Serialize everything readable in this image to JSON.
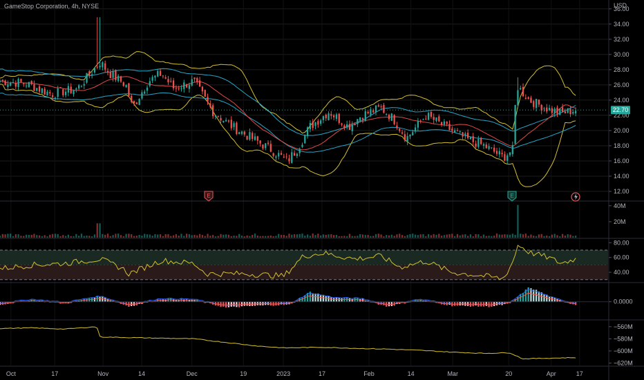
{
  "header": {
    "title": "GameStop Corporation, 4h, NYSE",
    "currency": "USD"
  },
  "colors": {
    "background": "#000000",
    "up": "#26a69a",
    "down": "#ef5350",
    "bollinger": "#d4c030",
    "envelope": "#26a6c8",
    "ma": "#e04848",
    "rsi": "#d4c030",
    "rsi_band": "#1a2a22",
    "rsi_band_low": "#2a1a1a",
    "price_tag": "#26a69a",
    "grid": "#1c1c1c"
  },
  "events": {
    "earnings_1": "E",
    "earnings_2": "E",
    "split_icon": "lightning-icon"
  },
  "chart_data": [
    {
      "type": "candlestick",
      "name": "price",
      "y_ticks": [
        "36.00",
        "34.00",
        "32.00",
        "30.00",
        "28.00",
        "26.00",
        "24.00",
        "22.00",
        "20.00",
        "18.00",
        "16.00",
        "14.00",
        "12.00"
      ],
      "y_tick_values": [
        36,
        34,
        32,
        30,
        28,
        26,
        24,
        22,
        20,
        18,
        16,
        14,
        12
      ],
      "ylim": [
        11,
        36.8
      ],
      "last_price": "22.70",
      "last_value": 22.7,
      "x_ticks": [
        "Oct",
        "17",
        "Nov",
        "14",
        "Dec",
        "19",
        "2023",
        "17",
        "Feb",
        "14",
        "Mar",
        "20",
        "Apr",
        "17"
      ],
      "x_tick_pos": [
        0.017,
        0.085,
        0.16,
        0.22,
        0.298,
        0.378,
        0.44,
        0.5,
        0.573,
        0.638,
        0.703,
        0.79,
        0.856,
        0.9
      ],
      "key_points": [
        {
          "t": 0.0,
          "c": 26.5
        },
        {
          "t": 0.04,
          "c": 26.2
        },
        {
          "t": 0.08,
          "c": 24.8
        },
        {
          "t": 0.12,
          "c": 25.5
        },
        {
          "t": 0.155,
          "c": 29.0
        },
        {
          "t": 0.17,
          "c": 27.5
        },
        {
          "t": 0.195,
          "c": 26.0
        },
        {
          "t": 0.205,
          "c": 23.0
        },
        {
          "t": 0.23,
          "c": 26.5
        },
        {
          "t": 0.25,
          "c": 27.5
        },
        {
          "t": 0.27,
          "c": 25.5
        },
        {
          "t": 0.3,
          "c": 26.5
        },
        {
          "t": 0.33,
          "c": 22.5
        },
        {
          "t": 0.36,
          "c": 20.5
        },
        {
          "t": 0.39,
          "c": 19.0
        },
        {
          "t": 0.42,
          "c": 17.5
        },
        {
          "t": 0.445,
          "c": 16.0
        },
        {
          "t": 0.46,
          "c": 17.5
        },
        {
          "t": 0.48,
          "c": 20.5
        },
        {
          "t": 0.51,
          "c": 22.5
        },
        {
          "t": 0.54,
          "c": 20.5
        },
        {
          "t": 0.56,
          "c": 22.0
        },
        {
          "t": 0.59,
          "c": 23.0
        },
        {
          "t": 0.61,
          "c": 21.5
        },
        {
          "t": 0.63,
          "c": 19.0
        },
        {
          "t": 0.66,
          "c": 22.0
        },
        {
          "t": 0.69,
          "c": 20.5
        },
        {
          "t": 0.72,
          "c": 19.0
        },
        {
          "t": 0.75,
          "c": 18.0
        },
        {
          "t": 0.78,
          "c": 16.5
        },
        {
          "t": 0.795,
          "c": 17.5
        },
        {
          "t": 0.8,
          "c": 26.0
        },
        {
          "t": 0.82,
          "c": 24.0
        },
        {
          "t": 0.85,
          "c": 22.8
        },
        {
          "t": 0.87,
          "c": 22.3
        },
        {
          "t": 0.89,
          "c": 22.7
        }
      ],
      "spikes": [
        {
          "t": 0.153,
          "high": 34.9
        },
        {
          "t": 0.802,
          "high": 27.0
        }
      ]
    },
    {
      "type": "bar",
      "name": "volume",
      "y_ticks": [
        "40M",
        "20M"
      ],
      "y_tick_values": [
        40,
        20
      ],
      "ylim": [
        0,
        45
      ],
      "typical": 4,
      "spikes": [
        {
          "t": 0.153,
          "value": 18
        },
        {
          "t": 0.802,
          "value": 41
        }
      ]
    },
    {
      "type": "line",
      "name": "rsi",
      "y_ticks": [
        "80.00",
        "60.00",
        "40.00"
      ],
      "y_tick_values": [
        80,
        60,
        40
      ],
      "ylim": [
        27,
        85
      ],
      "upper": 70,
      "mid": 50,
      "lower": 30,
      "key_points": [
        {
          "t": 0.0,
          "v": 45
        },
        {
          "t": 0.05,
          "v": 50
        },
        {
          "t": 0.1,
          "v": 52
        },
        {
          "t": 0.155,
          "v": 58
        },
        {
          "t": 0.19,
          "v": 45
        },
        {
          "t": 0.2,
          "v": 38
        },
        {
          "t": 0.25,
          "v": 56
        },
        {
          "t": 0.3,
          "v": 52
        },
        {
          "t": 0.32,
          "v": 38
        },
        {
          "t": 0.38,
          "v": 38
        },
        {
          "t": 0.44,
          "v": 35
        },
        {
          "t": 0.47,
          "v": 62
        },
        {
          "t": 0.5,
          "v": 66
        },
        {
          "t": 0.55,
          "v": 58
        },
        {
          "t": 0.59,
          "v": 62
        },
        {
          "t": 0.62,
          "v": 47
        },
        {
          "t": 0.66,
          "v": 55
        },
        {
          "t": 0.7,
          "v": 40
        },
        {
          "t": 0.75,
          "v": 35
        },
        {
          "t": 0.78,
          "v": 31
        },
        {
          "t": 0.795,
          "v": 55
        },
        {
          "t": 0.803,
          "v": 78
        },
        {
          "t": 0.82,
          "v": 67
        },
        {
          "t": 0.85,
          "v": 60
        },
        {
          "t": 0.87,
          "v": 52
        },
        {
          "t": 0.89,
          "v": 58
        }
      ]
    },
    {
      "type": "histogram",
      "name": "macd",
      "y_ticks": [
        "0.0000"
      ],
      "y_tick_values": [
        0
      ],
      "ylim": [
        -1.8,
        1.9
      ],
      "key_points": [
        {
          "t": 0.0,
          "h": -0.3
        },
        {
          "t": 0.05,
          "h": 0.2
        },
        {
          "t": 0.1,
          "h": -0.2
        },
        {
          "t": 0.155,
          "h": 0.6
        },
        {
          "t": 0.2,
          "h": -0.5
        },
        {
          "t": 0.25,
          "h": 0.3
        },
        {
          "t": 0.3,
          "h": 0.2
        },
        {
          "t": 0.35,
          "h": -0.6
        },
        {
          "t": 0.4,
          "h": -0.4
        },
        {
          "t": 0.45,
          "h": -0.3
        },
        {
          "t": 0.48,
          "h": 1.0
        },
        {
          "t": 0.52,
          "h": 0.4
        },
        {
          "t": 0.56,
          "h": 0.3
        },
        {
          "t": 0.6,
          "h": -0.5
        },
        {
          "t": 0.65,
          "h": 0.2
        },
        {
          "t": 0.7,
          "h": -0.4
        },
        {
          "t": 0.76,
          "h": -0.5
        },
        {
          "t": 0.79,
          "h": -0.2
        },
        {
          "t": 0.82,
          "h": 1.5
        },
        {
          "t": 0.86,
          "h": 0.3
        },
        {
          "t": 0.89,
          "h": -0.3
        }
      ]
    },
    {
      "type": "line",
      "name": "obv",
      "y_ticks": [
        "−560M",
        "−580M",
        "−600M",
        "−620M"
      ],
      "y_tick_values": [
        -560,
        -580,
        -600,
        -620
      ],
      "ylim": [
        -624,
        -550
      ],
      "key_points": [
        {
          "t": 0.0,
          "v": -563
        },
        {
          "t": 0.05,
          "v": -562
        },
        {
          "t": 0.1,
          "v": -564
        },
        {
          "t": 0.15,
          "v": -560
        },
        {
          "t": 0.155,
          "v": -577
        },
        {
          "t": 0.2,
          "v": -578
        },
        {
          "t": 0.3,
          "v": -580
        },
        {
          "t": 0.35,
          "v": -586
        },
        {
          "t": 0.4,
          "v": -592
        },
        {
          "t": 0.44,
          "v": -595
        },
        {
          "t": 0.5,
          "v": -594
        },
        {
          "t": 0.56,
          "v": -596
        },
        {
          "t": 0.6,
          "v": -597
        },
        {
          "t": 0.65,
          "v": -599
        },
        {
          "t": 0.7,
          "v": -602
        },
        {
          "t": 0.75,
          "v": -604
        },
        {
          "t": 0.79,
          "v": -603
        },
        {
          "t": 0.81,
          "v": -613
        },
        {
          "t": 0.85,
          "v": -612
        },
        {
          "t": 0.89,
          "v": -611
        }
      ]
    }
  ]
}
